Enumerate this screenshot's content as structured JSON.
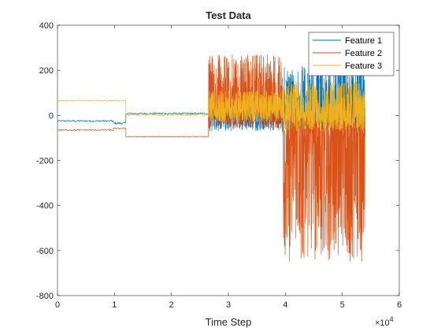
{
  "chart_data": {
    "type": "line",
    "title": "Test Data",
    "xlabel": "Time Step",
    "ylabel": "",
    "x_exponent_label": "×10",
    "x_exponent_power": "4",
    "xlim": [
      0,
      6
    ],
    "ylim": [
      -800,
      400
    ],
    "xticks": [
      0,
      1,
      2,
      3,
      4,
      5,
      6
    ],
    "yticks": [
      -800,
      -600,
      -400,
      -200,
      0,
      200,
      400
    ],
    "xtick_labels": [
      "0",
      "1",
      "2",
      "3",
      "4",
      "5",
      "6"
    ],
    "ytick_labels": [
      "-800",
      "-600",
      "-400",
      "-200",
      "0",
      "200",
      "400"
    ],
    "grid": false,
    "legend_position": "top-right",
    "series": [
      {
        "name": "Feature 1",
        "color": "#0072BD",
        "segments": [
          {
            "x_start": 0,
            "x_end": 0.98,
            "level": -25,
            "noise": 4
          },
          {
            "x_start": 0.98,
            "x_end": 1.2,
            "level": -35,
            "noise": 5
          },
          {
            "x_start": 1.2,
            "x_end": 2.65,
            "level": 8,
            "noise": 4
          },
          {
            "x_start": 2.65,
            "x_end": 3.95,
            "level": 0,
            "noise_low": 70,
            "noise_high": 60
          },
          {
            "x_start": 3.95,
            "x_end": 5.4,
            "level": 10,
            "noise_low": 80,
            "noise_high": 210
          }
        ]
      },
      {
        "name": "Feature 2",
        "color": "#D95319",
        "segments": [
          {
            "x_start": 0,
            "x_end": 0.98,
            "level": -65,
            "noise": 3
          },
          {
            "x_start": 0.98,
            "x_end": 1.2,
            "level": -58,
            "noise": 3
          },
          {
            "x_start": 1.2,
            "x_end": 2.65,
            "level": -95,
            "noise": 2
          },
          {
            "x_start": 2.65,
            "x_end": 3.95,
            "level": 50,
            "noise_low": 110,
            "noise_high": 220
          },
          {
            "x_start": 3.95,
            "x_end": 5.4,
            "level": -100,
            "noise_low": 550,
            "noise_high": 150
          }
        ]
      },
      {
        "name": "Feature 3",
        "color": "#EDB120",
        "segments": [
          {
            "x_start": 0,
            "x_end": 1.2,
            "level": 65,
            "noise": 2
          },
          {
            "x_start": 1.2,
            "x_end": 2.65,
            "level": 3,
            "noise": 4
          },
          {
            "x_start": 2.65,
            "x_end": 3.95,
            "level": 30,
            "noise_low": 60,
            "noise_high": 80
          },
          {
            "x_start": 3.95,
            "x_end": 5.4,
            "level": 20,
            "noise_low": 90,
            "noise_high": 130
          }
        ]
      }
    ]
  }
}
